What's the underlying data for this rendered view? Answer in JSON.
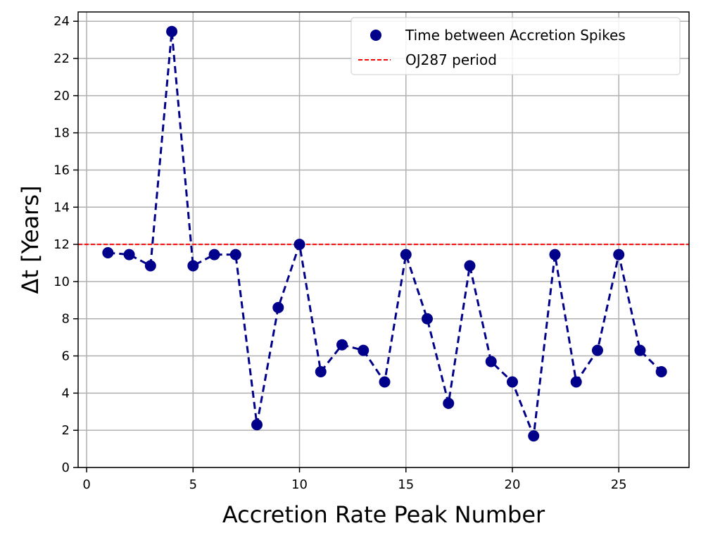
{
  "chart_data": {
    "type": "scatter",
    "title": "",
    "xlabel": "Accretion Rate Peak Number",
    "ylabel": "Δt [Years]",
    "xlim": [
      -0.4,
      28.3
    ],
    "ylim": [
      0,
      24.5
    ],
    "xticks": [
      0,
      5,
      10,
      15,
      20,
      25
    ],
    "yticks": [
      0,
      2,
      4,
      6,
      8,
      10,
      12,
      14,
      16,
      18,
      20,
      22,
      24
    ],
    "grid": true,
    "legend_position": "top-right",
    "series": [
      {
        "name": "Time between Accretion Spikes",
        "style": "scatter with dashed connecting line",
        "color": "#00008B",
        "x": [
          1,
          2,
          3,
          4,
          5,
          6,
          7,
          8,
          9,
          10,
          11,
          12,
          13,
          14,
          15,
          16,
          17,
          18,
          19,
          20,
          21,
          22,
          23,
          24,
          25,
          26,
          27
        ],
        "y": [
          11.55,
          11.45,
          10.85,
          23.45,
          10.85,
          11.45,
          11.45,
          2.3,
          8.6,
          12.0,
          5.15,
          6.6,
          6.3,
          4.6,
          11.45,
          8.0,
          3.45,
          10.85,
          5.7,
          4.6,
          1.7,
          11.45,
          4.6,
          6.3,
          11.45,
          6.3,
          5.15
        ]
      },
      {
        "name": "OJ287 period",
        "style": "horizontal dashed line",
        "color": "#FF0000",
        "y": 12
      }
    ]
  }
}
